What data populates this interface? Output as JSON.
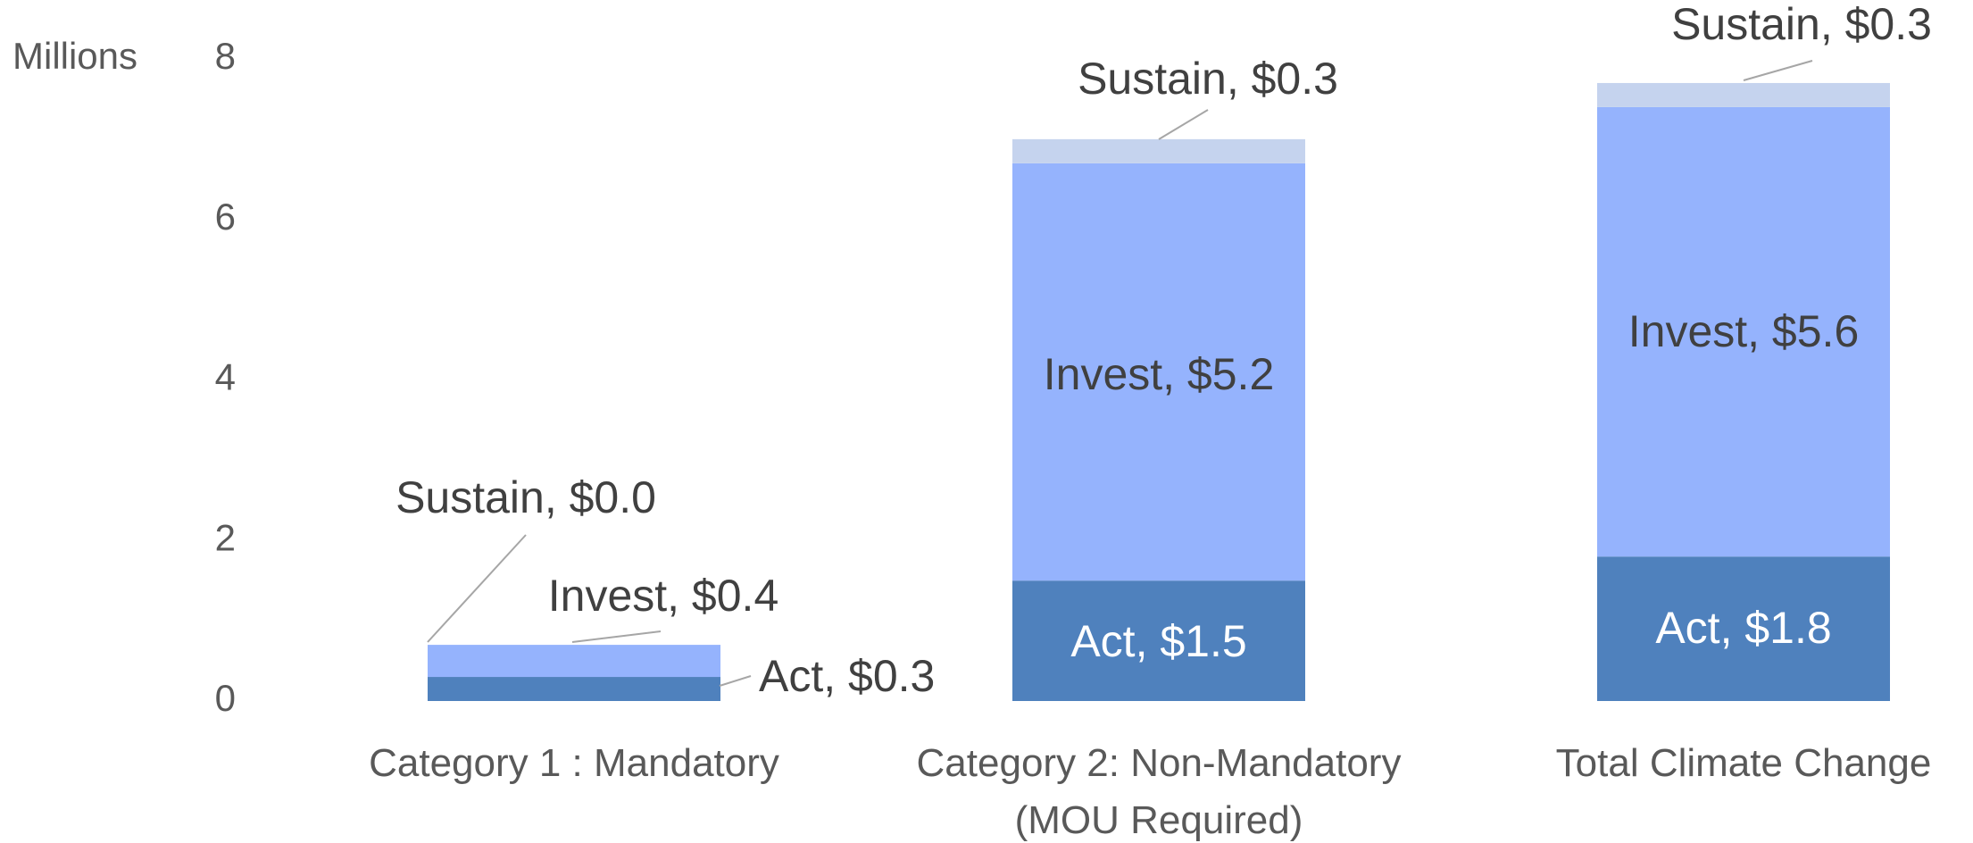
{
  "chart_data": {
    "type": "stacked_bar",
    "y_axis_label": "Millions",
    "categories": [
      "Category 1 : Mandatory",
      "Category 2: Non-Mandatory (MOU Required)",
      "Total Climate Change"
    ],
    "series": [
      {
        "name": "Act",
        "color": "#4f81bd",
        "values": [
          0.3,
          1.5,
          1.8
        ],
        "value_labels": [
          "Act, $0.3",
          "Act, $1.5",
          "Act, $1.8"
        ]
      },
      {
        "name": "Invest",
        "color": "#95b3fd",
        "values": [
          0.4,
          5.2,
          5.6
        ],
        "value_labels": [
          "Invest, $0.4",
          "Invest, $5.2",
          "Invest, $5.6"
        ]
      },
      {
        "name": "Sustain",
        "color": "#c5d3ee",
        "values": [
          0.0,
          0.3,
          0.3
        ],
        "value_labels": [
          "Sustain, $0.0",
          "Sustain, $0.3",
          "Sustain, $0.3"
        ]
      }
    ],
    "ylim": [
      0,
      8
    ],
    "yticks": [
      0,
      2,
      4,
      6,
      8
    ],
    "grid": false
  }
}
